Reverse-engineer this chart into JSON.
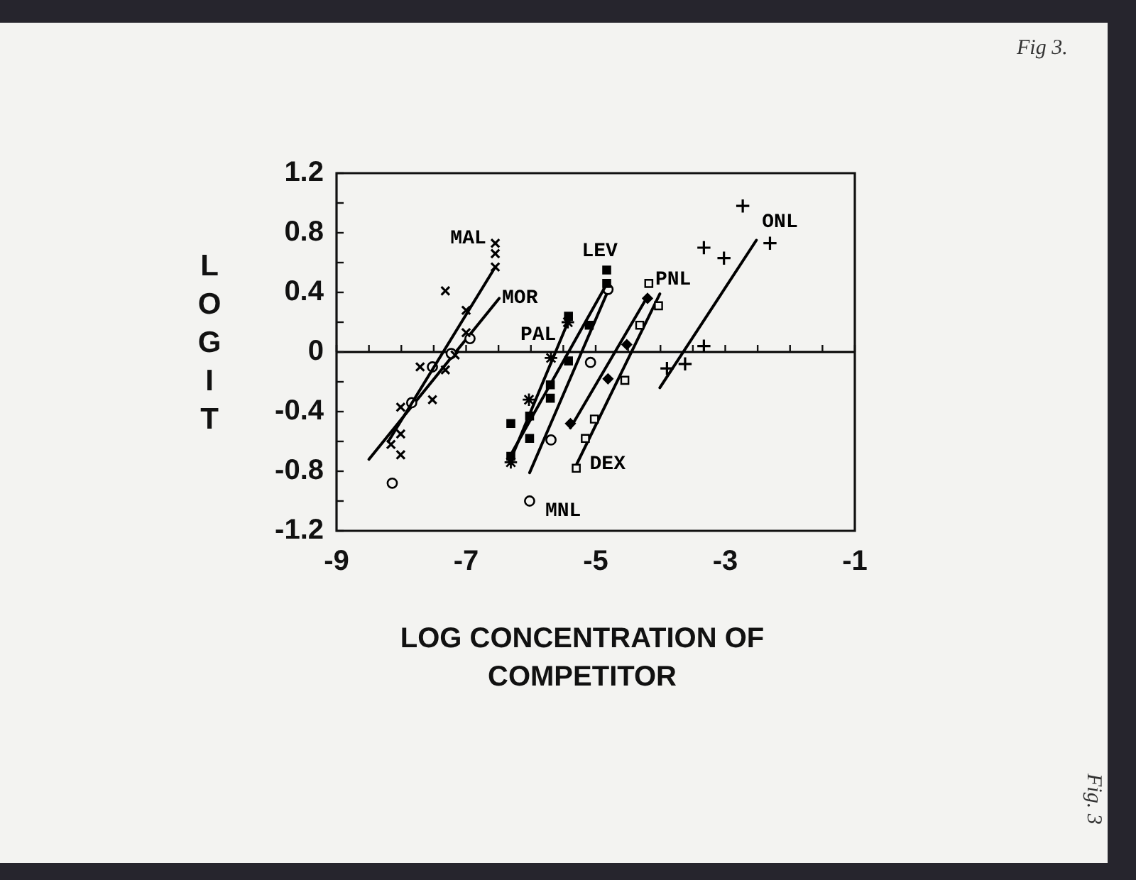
{
  "chart_data": {
    "type": "scatter",
    "xlabel": "LOG CONCENTRATION OF COMPETITOR",
    "ylabel": "LOGIT",
    "xlim": [
      -9,
      -1
    ],
    "xticks": [
      -9,
      {
        "value": -8.5,
        "label": null
      },
      {
        "value": -8,
        "label": null
      },
      {
        "value": -7.5,
        "label": null
      },
      -7,
      {
        "value": -6.5,
        "label": null
      },
      {
        "value": -6,
        "label": null
      },
      {
        "value": -5.5,
        "label": null
      },
      -5,
      {
        "value": -4.5,
        "label": null
      },
      {
        "value": -4,
        "label": null
      },
      {
        "value": -3.5,
        "label": null
      },
      -3,
      {
        "value": -2.5,
        "label": null
      },
      {
        "value": -2,
        "label": null
      },
      {
        "value": -1.5,
        "label": null
      },
      -1
    ],
    "ylim": [
      -1.2,
      1.2
    ],
    "yticks": [
      -1.2,
      {
        "value": -1.0,
        "label": null
      },
      -0.8,
      {
        "value": -0.6,
        "label": null
      },
      -0.4,
      {
        "value": -0.2,
        "label": null
      },
      0,
      {
        "value": 0.2,
        "label": null
      },
      0.4,
      {
        "value": 0.6,
        "label": null
      },
      0.8,
      {
        "value": 1.0,
        "label": null
      },
      1.2
    ],
    "ref_lines": [
      {
        "axis": "y",
        "value": 0,
        "color": "#000000"
      }
    ],
    "annotations": [
      "Fig 3.",
      "Fig. 3"
    ],
    "series": [
      {
        "name": "MAL",
        "marker": "cross",
        "color": "#000000",
        "x": [
          -6.55,
          -6.55,
          -6.55,
          -7.32,
          -7.0,
          -7.0,
          -7.17,
          -7.71,
          -7.32,
          -7.52,
          -8.01,
          -8.01,
          -8.16,
          -8.01
        ],
        "values": [
          0.73,
          0.66,
          0.57,
          0.41,
          0.28,
          0.13,
          -0.02,
          -0.1,
          -0.12,
          -0.32,
          -0.37,
          -0.55,
          -0.62,
          -0.69
        ]
      },
      {
        "type": "line",
        "color": "#000000",
        "x": [
          -8.2,
          -6.55
        ],
        "values": [
          -0.6,
          0.57
        ]
      },
      {
        "marker": "circle-open",
        "color": "#000000",
        "x": [
          -6.94,
          -7.23,
          -7.52,
          -7.84,
          -8.14
        ],
        "values": [
          0.09,
          -0.01,
          -0.1,
          -0.34,
          -0.88
        ]
      },
      {
        "name": "MOR",
        "type": "line",
        "color": "#000000",
        "x": [
          -8.5,
          -6.49
        ],
        "values": [
          -0.72,
          0.36
        ]
      },
      {
        "name": "PAL",
        "color": "#000000",
        "x": [
          -5.43,
          -5.69,
          -6.03,
          -6.31
        ],
        "values": [
          0.2,
          -0.04,
          -0.32,
          -0.74
        ]
      },
      {
        "type": "line",
        "color": "#000000",
        "x": [
          -6.31,
          -5.39
        ],
        "values": [
          -0.72,
          0.24
        ]
      },
      {
        "name": "LEV",
        "marker": "square",
        "color": "#000000",
        "x": [
          -4.83,
          -4.83,
          -5.42,
          -5.1,
          -5.42,
          -5.7,
          -5.7,
          -6.02,
          -6.31,
          -6.02,
          -6.31
        ],
        "values": [
          0.55,
          0.46,
          0.24,
          0.18,
          -0.06,
          -0.22,
          -0.31,
          -0.43,
          -0.48,
          -0.58,
          -0.7
        ]
      },
      {
        "type": "line",
        "color": "#000000",
        "x": [
          -6.35,
          -4.85
        ],
        "values": [
          -0.72,
          0.44
        ]
      },
      {
        "name": "PNL",
        "marker": "diamond",
        "color": "#000000",
        "x": [
          -4.2,
          -4.52,
          -4.81,
          -5.39
        ],
        "values": [
          0.36,
          0.05,
          -0.18,
          -0.48
        ]
      },
      {
        "type": "line",
        "color": "#000000",
        "x": [
          -5.39,
          -4.19
        ],
        "values": [
          -0.51,
          0.38
        ]
      },
      {
        "name": "DEX",
        "marker": "square-open",
        "color": "#000000",
        "x": [
          -4.18,
          -4.03,
          -4.32,
          -4.55,
          -5.02,
          -5.16,
          -5.3
        ],
        "values": [
          0.46,
          0.31,
          0.18,
          -0.19,
          -0.45,
          -0.58,
          -0.78
        ]
      },
      {
        "type": "line",
        "color": "#000000",
        "x": [
          -5.29,
          -4.01
        ],
        "values": [
          -0.75,
          0.39
        ]
      },
      {
        "name": "MNL",
        "marker": "circle-open",
        "color": "#000000",
        "x": [
          -4.81,
          -5.08,
          -5.69,
          -6.02
        ],
        "values": [
          0.42,
          -0.07,
          -0.59,
          -1.0
        ]
      },
      {
        "type": "line",
        "color": "#000000",
        "x": [
          -6.02,
          -4.81
        ],
        "values": [
          -0.81,
          0.41
        ]
      },
      {
        "name": "ONL",
        "marker": "plus",
        "color": "#000000",
        "x": [
          -2.73,
          -3.33,
          -3.02,
          -2.31,
          -3.33,
          -3.62,
          -3.9
        ],
        "values": [
          0.98,
          0.7,
          0.63,
          0.73,
          0.04,
          -0.08,
          -0.11
        ]
      },
      {
        "type": "line",
        "color": "#000000",
        "x": [
          -4.01,
          -2.52
        ],
        "values": [
          -0.24,
          0.75
        ]
      }
    ]
  }
}
